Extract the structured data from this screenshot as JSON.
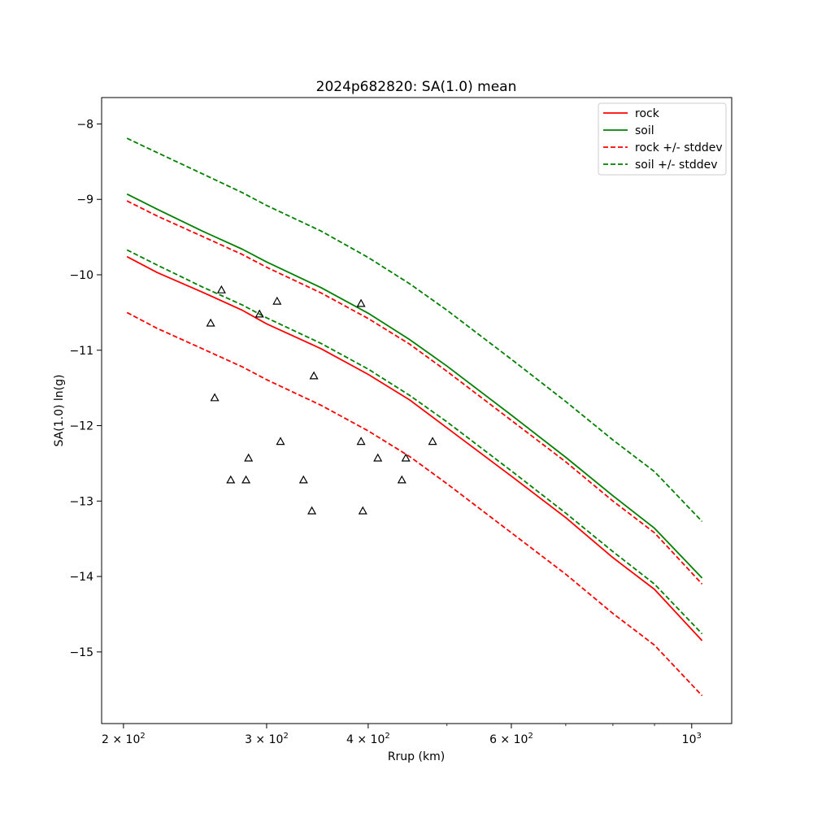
{
  "chart_data": {
    "type": "line",
    "title": "2024p682820: SA(1.0) mean",
    "xlabel": "Rrup (km)",
    "ylabel": "SA(1.0) ln(g)",
    "xscale": "log",
    "xlim": [
      188,
      1120
    ],
    "ylim": [
      -15.95,
      -7.65
    ],
    "x_tick_labels": [
      {
        "value": 200,
        "base": "2 × 10",
        "exp": "2"
      },
      {
        "value": 300,
        "base": "3 × 10",
        "exp": "2"
      },
      {
        "value": 400,
        "base": "4 × 10",
        "exp": "2"
      },
      {
        "value": 600,
        "base": "6 × 10",
        "exp": "2"
      },
      {
        "value": 1000,
        "base": "10",
        "exp": "3"
      }
    ],
    "x_minor_ticks": [
      500,
      700,
      800,
      900
    ],
    "y_ticks": [
      -15,
      -14,
      -13,
      -12,
      -11,
      -10,
      -9,
      -8
    ],
    "y_tick_labels": [
      "−15",
      "−14",
      "−13",
      "−12",
      "−11",
      "−10",
      "−9",
      "−8"
    ],
    "legend": {
      "position": "upper-right",
      "entries": [
        {
          "label": "rock",
          "color": "#ff0000",
          "style": "solid"
        },
        {
          "label": "soil",
          "color": "#008000",
          "style": "solid"
        },
        {
          "label": "rock +/- stddev",
          "color": "#ff0000",
          "style": "dashed"
        },
        {
          "label": "soil +/- stddev",
          "color": "#008000",
          "style": "dashed"
        }
      ]
    },
    "x": [
      202,
      220,
      250,
      280,
      300,
      350,
      400,
      450,
      500,
      600,
      700,
      800,
      900,
      1030
    ],
    "series": [
      {
        "name": "rock",
        "color": "#ff0000",
        "style": "solid",
        "values": [
          -9.76,
          -9.97,
          -10.23,
          -10.47,
          -10.65,
          -10.98,
          -11.32,
          -11.66,
          -12.03,
          -12.67,
          -13.22,
          -13.75,
          -14.17,
          -14.85
        ]
      },
      {
        "name": "soil",
        "color": "#008000",
        "style": "solid",
        "values": [
          -8.93,
          -9.13,
          -9.42,
          -9.66,
          -9.83,
          -10.17,
          -10.51,
          -10.86,
          -11.21,
          -11.86,
          -12.42,
          -12.93,
          -13.36,
          -14.02
        ]
      },
      {
        "name": "rock +/- stddev",
        "color": "#ff0000",
        "style": "dashed",
        "band": "upper",
        "values": [
          -9.02,
          -9.22,
          -9.49,
          -9.73,
          -9.9,
          -10.24,
          -10.58,
          -10.92,
          -11.28,
          -11.93,
          -12.48,
          -13.0,
          -13.42,
          -14.1
        ]
      },
      {
        "name": "rock +/- stddev",
        "color": "#ff0000",
        "style": "dashed",
        "band": "lower",
        "values": [
          -10.5,
          -10.71,
          -10.98,
          -11.22,
          -11.39,
          -11.73,
          -12.07,
          -12.41,
          -12.77,
          -13.42,
          -13.97,
          -14.49,
          -14.91,
          -15.58
        ]
      },
      {
        "name": "soil +/- stddev",
        "color": "#008000",
        "style": "dashed",
        "band": "upper",
        "values": [
          -8.19,
          -8.38,
          -8.66,
          -8.91,
          -9.08,
          -9.42,
          -9.77,
          -10.12,
          -10.47,
          -11.12,
          -11.68,
          -12.19,
          -12.61,
          -13.27
        ]
      },
      {
        "name": "soil +/- stddev",
        "color": "#008000",
        "style": "dashed",
        "band": "lower",
        "values": [
          -9.67,
          -9.87,
          -10.16,
          -10.4,
          -10.57,
          -10.91,
          -11.25,
          -11.6,
          -11.95,
          -12.6,
          -13.16,
          -13.67,
          -14.1,
          -14.76
        ]
      }
    ],
    "observations": {
      "marker": "triangle",
      "color": "#000000",
      "points": [
        {
          "x": 256,
          "y": -10.64
        },
        {
          "x": 259,
          "y": -11.63
        },
        {
          "x": 264,
          "y": -10.2
        },
        {
          "x": 271,
          "y": -12.72
        },
        {
          "x": 283,
          "y": -12.72
        },
        {
          "x": 285,
          "y": -12.43
        },
        {
          "x": 294,
          "y": -10.52
        },
        {
          "x": 309,
          "y": -10.35
        },
        {
          "x": 312,
          "y": -12.21
        },
        {
          "x": 333,
          "y": -12.72
        },
        {
          "x": 341,
          "y": -13.13
        },
        {
          "x": 343,
          "y": -11.34
        },
        {
          "x": 392,
          "y": -10.38
        },
        {
          "x": 392,
          "y": -12.21
        },
        {
          "x": 394,
          "y": -13.13
        },
        {
          "x": 411,
          "y": -12.43
        },
        {
          "x": 440,
          "y": -12.72
        },
        {
          "x": 445,
          "y": -12.43
        },
        {
          "x": 480,
          "y": -12.21
        }
      ]
    }
  }
}
